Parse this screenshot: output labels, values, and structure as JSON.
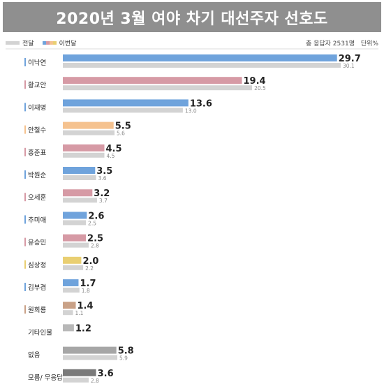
{
  "title": "2020년 3월 여야 차기 대선주자 선호도",
  "legend": {
    "previous_label": "전달",
    "current_label": "이번달",
    "sample": "총 응답자 2531명",
    "unit": "단위%",
    "colors": {
      "previous": "#d3d3d3",
      "current_swatches": [
        "#6fa3dc",
        "#d69aa5",
        "#f5c28f",
        "#e9cf72"
      ]
    }
  },
  "chart_data": {
    "type": "bar",
    "orientation": "horizontal",
    "title": "2020년 3월 여야 차기 대선주자 선호도",
    "categories": [
      "이낙연",
      "황교안",
      "이재명",
      "안철수",
      "홍준표",
      "박원순",
      "오세훈",
      "추미애",
      "유승민",
      "심상정",
      "김부겸",
      "원희룡",
      "기타인물",
      "없음",
      "모름/ 무응답"
    ],
    "series": [
      {
        "name": "이번달",
        "values": [
          29.7,
          19.4,
          13.6,
          5.5,
          4.5,
          3.5,
          3.2,
          2.6,
          2.5,
          2.0,
          1.7,
          1.4,
          1.2,
          5.8,
          3.6
        ],
        "value_labels": [
          "29.7",
          "19.4",
          "13.6",
          "5.5",
          "4.5",
          "3.5",
          "3.2",
          "2.6",
          "2.5",
          "2.0",
          "1.7",
          "1.4",
          "1.2",
          "5.8",
          "3.6"
        ],
        "colors": [
          "#6fa3dc",
          "#d69aa5",
          "#6fa3dc",
          "#f5c28f",
          "#d69aa5",
          "#6fa3dc",
          "#d69aa5",
          "#6fa3dc",
          "#d69aa5",
          "#e9cf72",
          "#6fa3dc",
          "#c9a187",
          "#b8b8b8",
          "#a6a6a6",
          "#7a7a7a"
        ]
      },
      {
        "name": "전달",
        "values": [
          30.1,
          20.5,
          13.0,
          5.6,
          4.5,
          3.6,
          3.7,
          2.5,
          2.8,
          2.2,
          1.8,
          1.1,
          null,
          5.9,
          2.8
        ],
        "value_labels": [
          "30.1",
          "20.5",
          "13.0",
          "5.6",
          "4.5",
          "3.6",
          "3.7",
          "2.5",
          "2.8",
          "2.2",
          "1.8",
          "1.1",
          "",
          "5.9",
          "2.8"
        ],
        "color": "#d3d3d3"
      }
    ],
    "label_accent_colors": [
      "#6fa3dc",
      "#d69aa5",
      "#6fa3dc",
      "#f5c28f",
      "#d69aa5",
      "#6fa3dc",
      "#d69aa5",
      "#6fa3dc",
      "#d69aa5",
      "#e9cf72",
      "#6fa3dc",
      "#c9a187",
      "",
      "",
      ""
    ],
    "xlim": [
      0,
      30.1
    ],
    "grid": false,
    "legend_position": "top-left"
  }
}
